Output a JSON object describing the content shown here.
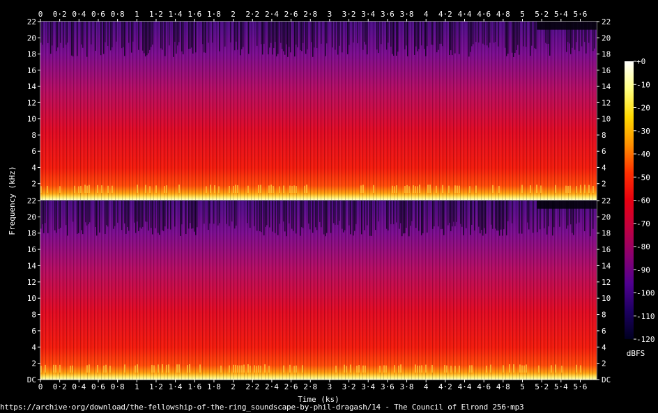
{
  "chart_data": {
    "type": "heatmap",
    "subtype": "spectrogram",
    "xlabel": "Time (ks)",
    "ylabel": "Frequency (kHz)",
    "xlim": [
      0,
      5.77
    ],
    "ylim": [
      0,
      22
    ],
    "x_ticks": [
      "0",
      "0·2",
      "0·4",
      "0·6",
      "0·8",
      "1",
      "1·2",
      "1·4",
      "1·6",
      "1·8",
      "2",
      "2·2",
      "2·4",
      "2·6",
      "2·8",
      "3",
      "3·2",
      "3·4",
      "3·6",
      "3·8",
      "4",
      "4·2",
      "4·4",
      "4·6",
      "4·8",
      "5",
      "5·2",
      "5·4",
      "5·6"
    ],
    "y_ticks_top": [
      "2",
      "4",
      "6",
      "8",
      "10",
      "12",
      "14",
      "16",
      "18",
      "20",
      "22"
    ],
    "y_ticks_bottom": [
      "DC",
      "2",
      "4",
      "6",
      "8",
      "10",
      "12",
      "14",
      "16",
      "18",
      "20",
      "22"
    ],
    "channels": 2,
    "colorbar": {
      "label": "dBFS",
      "range": [
        -120,
        0
      ],
      "ticks": [
        "+0",
        "-10",
        "-20",
        "-30",
        "-40",
        "-50",
        "-60",
        "-70",
        "-80",
        "-90",
        "-100",
        "-110",
        "-120"
      ],
      "colors": [
        "#ffffff",
        "#ffff80",
        "#ffd800",
        "#ff9000",
        "#ff3000",
        "#e80010",
        "#c00040",
        "#8a0070",
        "#500090",
        "#1c0060",
        "#000020"
      ]
    },
    "observations": {
      "low_frequency_level_dbfs": -35,
      "mid_frequency_level_dbfs": -55,
      "high_frequency_level_dbfs": -70,
      "lowpass_after_ks": 5.15,
      "lowpass_khz": 21
    }
  },
  "footer": {
    "source_path": "https://archive·org/download/the-fellowship-of-the-ring_soundscape-by-phil-dragash/14 - The Council of Elrond 256·mp3"
  }
}
